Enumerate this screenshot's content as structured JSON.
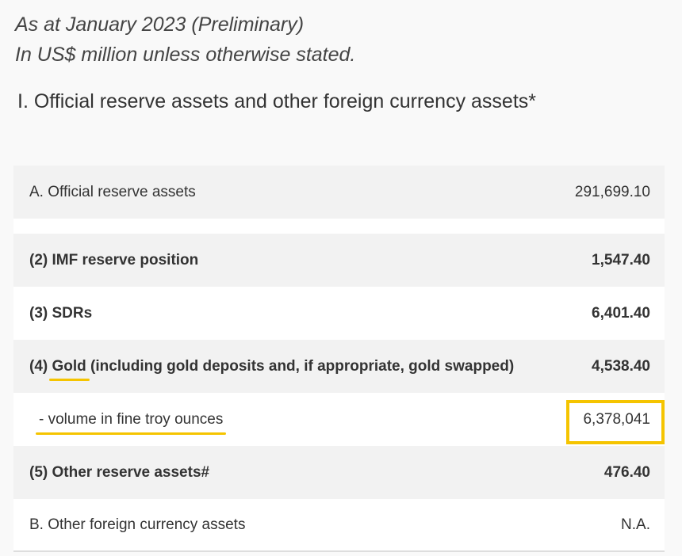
{
  "header": {
    "line1": "As at January 2023 (Preliminary)",
    "line2": "In US$ million unless otherwise stated."
  },
  "section_title": "I. Official reserve assets and other foreign currency assets*",
  "rows": [
    {
      "label": "A. Official reserve assets",
      "value": "291,699.10"
    },
    {
      "prefix": "(2) ",
      "label": "IMF reserve position",
      "value": "1,547.40"
    },
    {
      "prefix": "(3) ",
      "label": "SDRs",
      "value": "6,401.40"
    },
    {
      "prefix": "(4) ",
      "label": "Gold",
      "suffix": " (including gold deposits and, if appropriate, gold swapped)",
      "value": "4,538.40"
    },
    {
      "label": "- volume in fine troy ounces",
      "value": "6,378,041"
    },
    {
      "prefix": "(5) ",
      "label": "Other reserve assets#",
      "value": "476.40"
    },
    {
      "label": "B. Other foreign currency assets",
      "value": "N.A."
    }
  ],
  "highlight_color": "#f5c400"
}
